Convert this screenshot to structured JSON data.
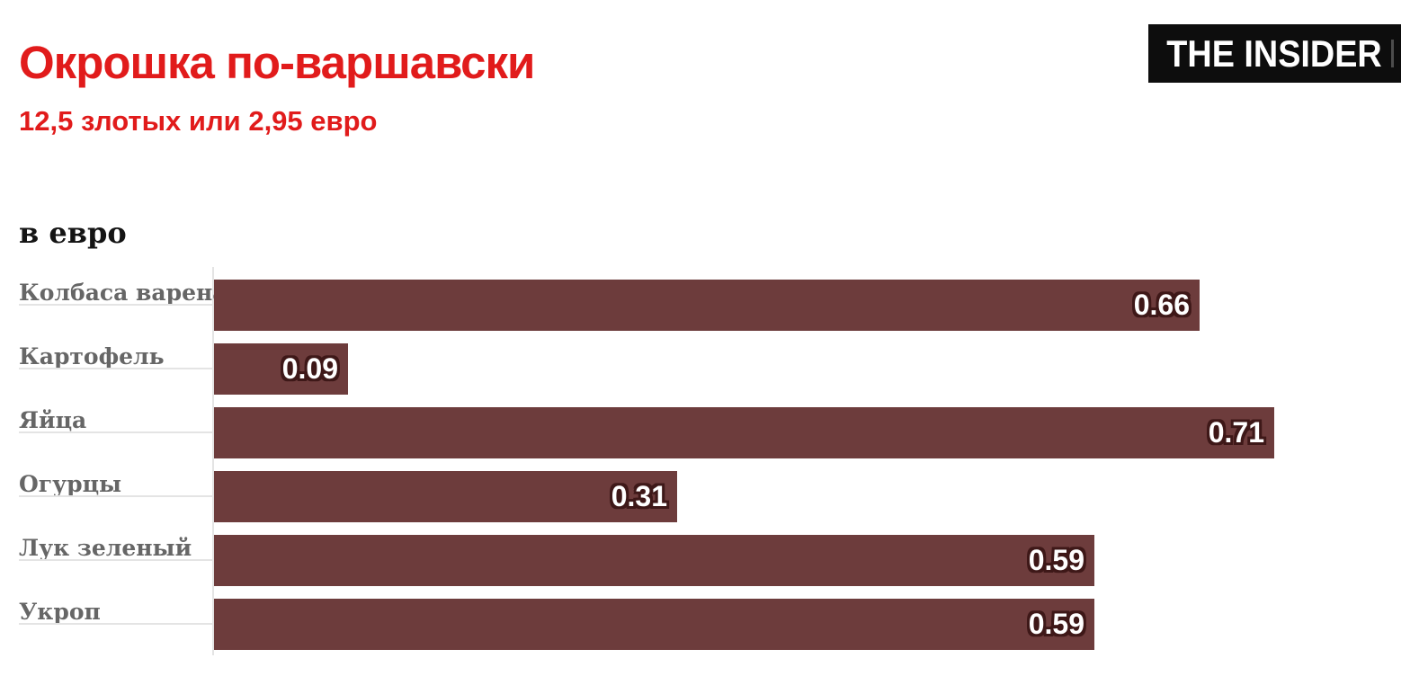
{
  "header": {
    "title": "Окрошка по-варшавски",
    "subtitle": "12,5 злотых или 2,95 евро",
    "logo_text": "THE INSIDER"
  },
  "chart_data": {
    "type": "bar",
    "orientation": "horizontal",
    "title": "Окрошка по-варшавски",
    "subtitle": "12,5 злотых или 2,95 евро",
    "units_label": "в евро",
    "categories": [
      "Колбаса вареная",
      "Картофель",
      "Яйца",
      "Огурцы",
      "Лук зеленый",
      "Укроп"
    ],
    "values": [
      0.66,
      0.09,
      0.71,
      0.31,
      0.59,
      0.59
    ],
    "value_labels": [
      "0.66",
      "0.09",
      "0.71",
      "0.31",
      "0.59",
      "0.59"
    ],
    "total": "2,95",
    "xlabel": "",
    "ylabel": "",
    "xlim": [
      0,
      0.8
    ],
    "grid": false,
    "legend": false,
    "colors": {
      "title": "#e11b1b",
      "bar": "#6d3c3c",
      "value_text": "#ffffff",
      "value_outline": "#3e1818",
      "label": "#666666",
      "axis": "#e4e4e4",
      "logo_bg": "#0d0d0d",
      "logo_text": "#ffffff"
    }
  }
}
